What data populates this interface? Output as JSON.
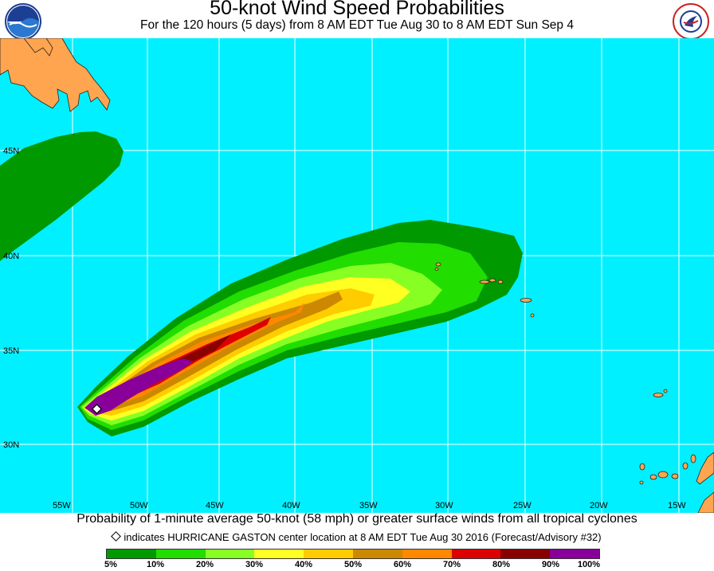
{
  "title": "50-knot Wind Speed Probabilities",
  "subtitle": "For the 120 hours (5 days) from 8 AM EDT Tue Aug 30 to 8 AM EDT Sun Sep 4",
  "logos": {
    "left": "NOAA",
    "right": "NATIONAL WEATHER SERVICE"
  },
  "colors": {
    "ocean": "#00f0ff",
    "land": "#ffa54f"
  },
  "lat_labels": [
    "45N",
    "40N",
    "35N",
    "30N"
  ],
  "lon_labels": [
    "55W",
    "50W",
    "45W",
    "40W",
    "35W",
    "30W",
    "25W",
    "20W",
    "15W"
  ],
  "footer": {
    "description": "Probability of 1-minute average 50-knot (58 mph) or greater surface winds from all tropical cyclones",
    "marker_note": "indicates HURRICANE GASTON center location at 8 AM EDT Tue Aug 30 2016 (Forecast/Advisory #32)"
  },
  "legend": {
    "colors": [
      "#009900",
      "#22dd00",
      "#88ff22",
      "#ffff22",
      "#ffcc00",
      "#cc8800",
      "#ff8800",
      "#dd0000",
      "#880000",
      "#880099"
    ],
    "labels": [
      "5%",
      "10%",
      "20%",
      "30%",
      "40%",
      "50%",
      "60%",
      "70%",
      "80%",
      "90%",
      "100%"
    ]
  }
}
